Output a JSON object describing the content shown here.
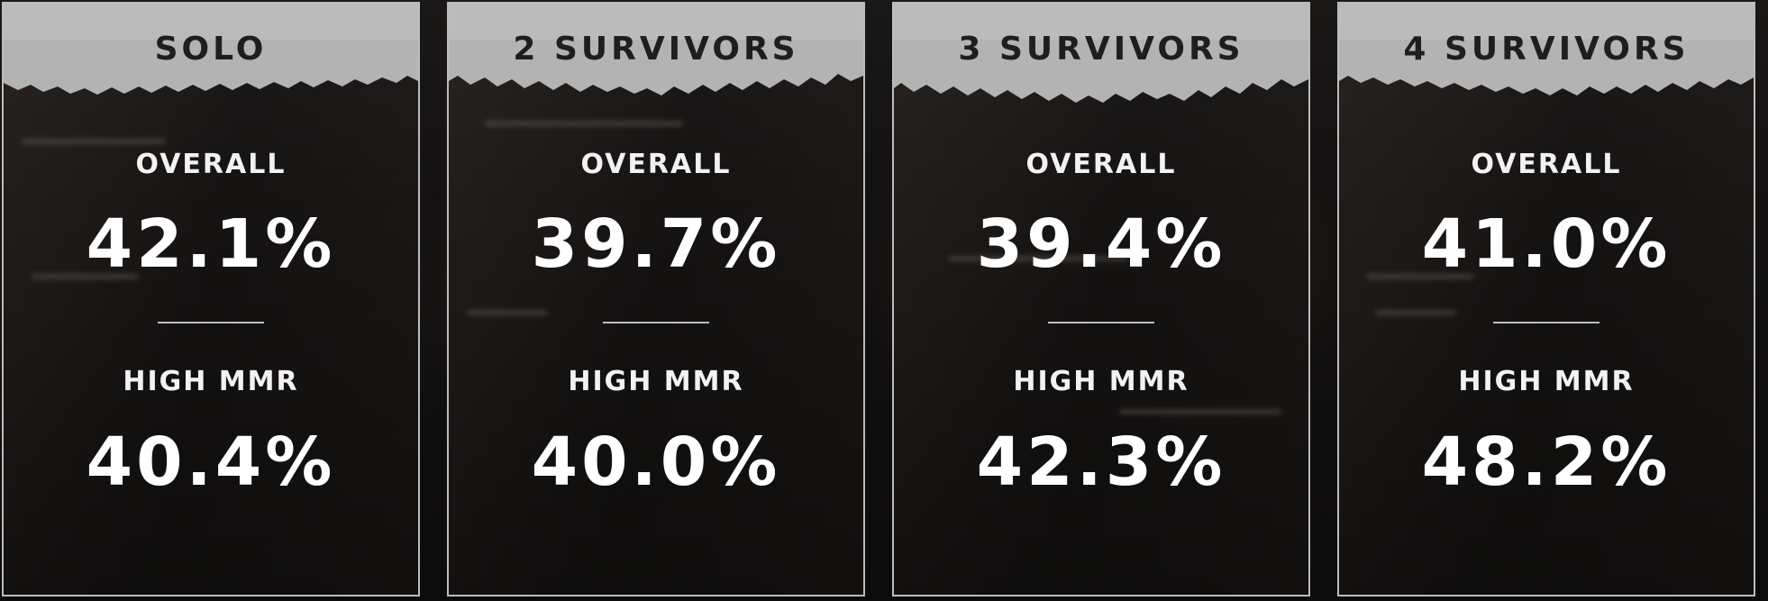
{
  "cards": [
    {
      "title": "SOLO",
      "overall_label": "OVERALL",
      "overall_value": "42.1%",
      "high_label": "HIGH MMR",
      "high_value": "40.4%"
    },
    {
      "title": "2 SURVIVORS",
      "overall_label": "OVERALL",
      "overall_value": "39.7%",
      "high_label": "HIGH MMR",
      "high_value": "40.0%"
    },
    {
      "title": "3 SURVIVORS",
      "overall_label": "OVERALL",
      "overall_value": "39.4%",
      "high_label": "HIGH MMR",
      "high_value": "42.3%"
    },
    {
      "title": "4 SURVIVORS",
      "overall_label": "OVERALL",
      "overall_value": "41.0%",
      "high_label": "HIGH MMR",
      "high_value": "48.2%"
    }
  ],
  "colors": {
    "header": "#b3b3b3",
    "panel": "#151312",
    "border": "#bcbcbc",
    "text": "#ffffff"
  }
}
